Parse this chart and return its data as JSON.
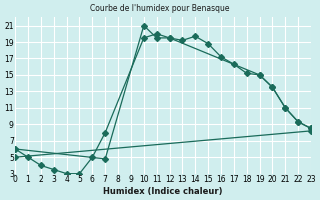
{
  "title": "Courbe de l'humidex pour Benasque",
  "xlabel": "Humidex (Indice chaleur)",
  "ylabel": "",
  "xlim": [
    0,
    23
  ],
  "ylim": [
    3,
    22
  ],
  "xticks": [
    0,
    1,
    2,
    3,
    4,
    5,
    6,
    7,
    8,
    9,
    10,
    11,
    12,
    13,
    14,
    15,
    16,
    17,
    18,
    19,
    20,
    21,
    22,
    23
  ],
  "yticks": [
    3,
    5,
    7,
    9,
    11,
    13,
    15,
    17,
    19,
    21
  ],
  "bg_color": "#d0eeee",
  "grid_color": "#ffffff",
  "line_color": "#1a6b5a",
  "line1_x": [
    0,
    1,
    2,
    3,
    4,
    5,
    6,
    7,
    10,
    11,
    12,
    13,
    14,
    15,
    16,
    17,
    18,
    19,
    20,
    21,
    22,
    23
  ],
  "line1_y": [
    6,
    5,
    4,
    3.5,
    3,
    3,
    5,
    8,
    19.5,
    20,
    19.5,
    19.2,
    19.7,
    18.8,
    17.2,
    16.3,
    15.2,
    15,
    13.5,
    11,
    9.3,
    8.5
  ],
  "line2_x": [
    0,
    7,
    10,
    11,
    12,
    19,
    20,
    21,
    22,
    23
  ],
  "line2_y": [
    6,
    4.8,
    21,
    19.5,
    19.5,
    15,
    13.5,
    11,
    9.3,
    8.5
  ],
  "line3_x": [
    0,
    23
  ],
  "line3_y": [
    5,
    8.2
  ],
  "marker": "D",
  "markersize": 3
}
